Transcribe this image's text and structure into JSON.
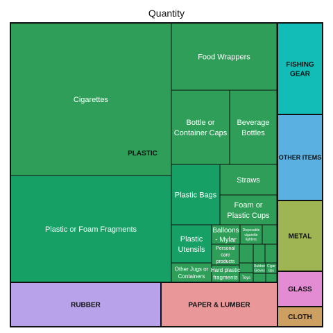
{
  "chart_data": {
    "type": "treemap",
    "title": "Quantity",
    "groups": [
      {
        "name": "PLASTIC",
        "color": "#2e9e58",
        "items": [
          {
            "label": "Cigarettes",
            "color": "#2e9e58"
          },
          {
            "label": "Plastic or Foam Fragments",
            "color": "#16a065"
          },
          {
            "label": "Food Wrappers",
            "color": "#2e9e58"
          },
          {
            "label": "Bottle or Container Caps",
            "color": "#2e9e58"
          },
          {
            "label": "Beverage Bottles",
            "color": "#2e9e58"
          },
          {
            "label": "Plastic Bags",
            "color": "#16a065"
          },
          {
            "label": "Straws",
            "color": "#2e9e58"
          },
          {
            "label": "Foam or Plastic Cups",
            "color": "#2e9e58"
          },
          {
            "label": "Plastic Utensils",
            "color": "#16a065"
          },
          {
            "label": "Balloons - Mylar",
            "color": "#2e9e58"
          },
          {
            "label": "Disposable cigarette lighters",
            "color": "#2e9e58"
          },
          {
            "label": "Personal care products",
            "color": "#2e9e58"
          },
          {
            "label": "Other Jugs or Containers",
            "color": "#2e9e58"
          },
          {
            "label": "Hard plastic fragments",
            "color": "#2e9e58"
          },
          {
            "label": "Rubber Gloves",
            "color": "#2e9e58"
          },
          {
            "label": "Cigar tips",
            "color": "#2e9e58"
          },
          {
            "label": "Toys",
            "color": "#2e9e58"
          }
        ]
      },
      {
        "name": "FISHING GEAR",
        "color": "#12bdb8"
      },
      {
        "name": "OTHER ITEMS",
        "color": "#5ab0e0"
      },
      {
        "name": "METAL",
        "color": "#9fb452"
      },
      {
        "name": "GLASS",
        "color": "#e38cd4"
      },
      {
        "name": "CLOTH",
        "color": "#cda062"
      },
      {
        "name": "RUBBER",
        "color": "#b8a2ea"
      },
      {
        "name": "PAPER & LUMBER",
        "color": "#ea979a"
      }
    ]
  }
}
